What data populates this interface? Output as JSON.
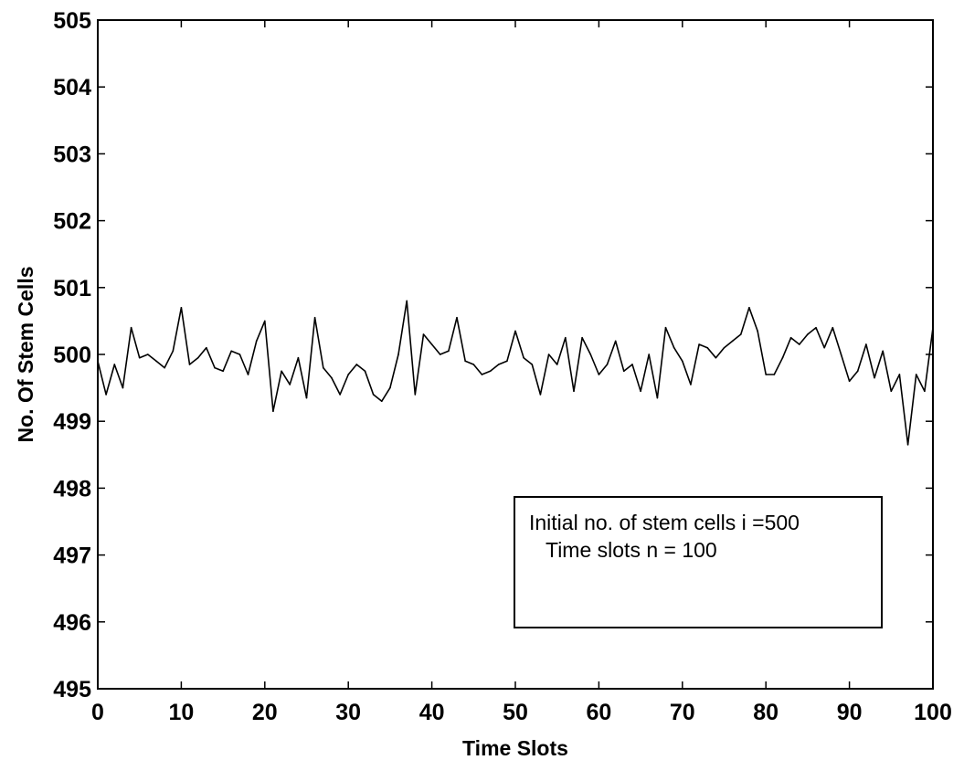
{
  "chart_data": {
    "type": "line",
    "title": "",
    "xlabel": "Time Slots",
    "ylabel": "No. Of Stem Cells",
    "xlim": [
      0,
      100
    ],
    "ylim": [
      495,
      505
    ],
    "xticks": [
      0,
      10,
      20,
      30,
      40,
      50,
      60,
      70,
      80,
      90,
      100
    ],
    "yticks": [
      495,
      496,
      497,
      498,
      499,
      500,
      501,
      502,
      503,
      504,
      505
    ],
    "grid": false,
    "legend": {
      "placement": "lower-right",
      "lines": [
        "Initial no. of stem cells i =500",
        "Time slots n = 100"
      ]
    },
    "series": [
      {
        "color": "#000000",
        "x": [
          0,
          1,
          2,
          3,
          4,
          5,
          6,
          7,
          8,
          9,
          10,
          11,
          12,
          13,
          14,
          15,
          16,
          17,
          18,
          19,
          20,
          21,
          22,
          23,
          24,
          25,
          26,
          27,
          28,
          29,
          30,
          31,
          32,
          33,
          34,
          35,
          36,
          37,
          38,
          39,
          40,
          41,
          42,
          43,
          44,
          45,
          46,
          47,
          48,
          49,
          50,
          51,
          52,
          53,
          54,
          55,
          56,
          57,
          58,
          59,
          60,
          61,
          62,
          63,
          64,
          65,
          66,
          67,
          68,
          69,
          70,
          71,
          72,
          73,
          74,
          75,
          76,
          77,
          78,
          79,
          80,
          81,
          82,
          83,
          84,
          85,
          86,
          87,
          88,
          89,
          90,
          91,
          92,
          93,
          94,
          95,
          96,
          97,
          98,
          99,
          100
        ],
        "values": [
          499.9,
          499.4,
          499.85,
          499.5,
          500.4,
          499.95,
          500.0,
          499.9,
          499.8,
          500.05,
          500.7,
          499.85,
          499.95,
          500.1,
          499.8,
          499.75,
          500.05,
          500.0,
          499.7,
          500.2,
          500.5,
          499.15,
          499.75,
          499.55,
          499.95,
          499.35,
          500.55,
          499.8,
          499.65,
          499.4,
          499.7,
          499.85,
          499.75,
          499.4,
          499.3,
          499.5,
          500.0,
          500.8,
          499.4,
          500.3,
          500.15,
          500.0,
          500.05,
          500.55,
          499.9,
          499.85,
          499.7,
          499.75,
          499.85,
          499.9,
          500.35,
          499.95,
          499.85,
          499.4,
          500.0,
          499.85,
          500.25,
          499.45,
          500.25,
          500.0,
          499.7,
          499.85,
          500.2,
          499.75,
          499.85,
          499.45,
          500.0,
          499.35,
          500.4,
          500.1,
          499.9,
          499.55,
          500.15,
          500.1,
          499.95,
          500.1,
          500.2,
          500.3,
          500.7,
          500.35,
          499.7,
          499.7,
          499.95,
          500.25,
          500.15,
          500.3,
          500.4,
          500.1,
          500.4,
          500.0,
          499.6,
          499.75,
          500.15,
          499.65,
          500.05,
          499.45,
          499.7,
          498.65,
          499.7,
          499.45,
          500.4
        ]
      }
    ]
  }
}
